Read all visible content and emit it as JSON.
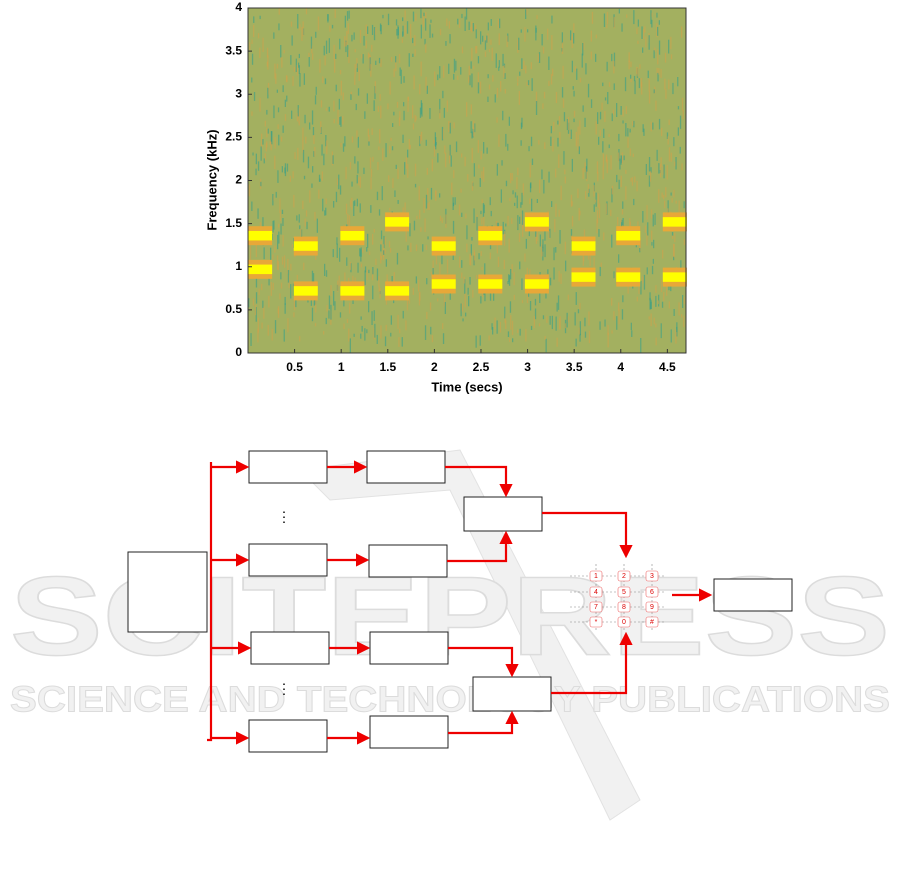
{
  "chart_data": {
    "type": "spectrogram",
    "x_label": "Time (secs)",
    "y_label": "Frequency (kHz)",
    "xlim": [
      0,
      4.7
    ],
    "ylim": [
      0,
      4
    ],
    "xticks": [
      0.5,
      1,
      1.5,
      2,
      2.5,
      3,
      3.5,
      4,
      4.5
    ],
    "yticks": [
      0,
      0.5,
      1,
      1.5,
      2,
      2.5,
      3,
      3.5,
      4
    ],
    "x": [
      0.13,
      0.62,
      1.12,
      1.6,
      2.1,
      2.6,
      3.1,
      3.6,
      4.08,
      4.58
    ],
    "series": [
      {
        "color": "#ffff00",
        "values": [
          0.97,
          0.72,
          0.72,
          0.72,
          0.8,
          0.8,
          0.8,
          0.88,
          0.88,
          0.88
        ]
      },
      {
        "color": "#ffff00",
        "values": [
          1.36,
          1.24,
          1.36,
          1.52,
          1.24,
          1.36,
          1.52,
          1.24,
          1.36,
          1.52
        ]
      }
    ]
  },
  "diagram": {
    "keypad": {
      "keys": [
        "1",
        "2",
        "3",
        "4",
        "5",
        "6",
        "7",
        "8",
        "9",
        "*",
        "0",
        "#"
      ]
    }
  },
  "watermark": {
    "title": "SCITEPRESS",
    "subtitle": "SCIENCE AND TECHNOLOGY PUBLICATIONS"
  }
}
